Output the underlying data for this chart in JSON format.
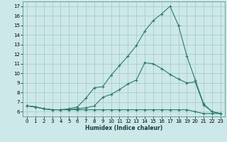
{
  "xlabel": "Humidex (Indice chaleur)",
  "background_color": "#cde8e8",
  "grid_color": "#aacccc",
  "line_color": "#2a7a6a",
  "xlim": [
    -0.5,
    23.5
  ],
  "ylim": [
    5.5,
    17.5
  ],
  "xticks": [
    0,
    1,
    2,
    3,
    4,
    5,
    6,
    7,
    8,
    9,
    10,
    11,
    12,
    13,
    14,
    15,
    16,
    17,
    18,
    19,
    20,
    21,
    22,
    23
  ],
  "yticks": [
    6,
    7,
    8,
    9,
    10,
    11,
    12,
    13,
    14,
    15,
    16,
    17
  ],
  "line1_x": [
    0,
    1,
    2,
    3,
    4,
    5,
    6,
    7,
    8,
    9,
    10,
    11,
    12,
    13,
    14,
    15,
    16,
    17,
    18,
    19,
    20,
    21,
    22,
    23
  ],
  "line1_y": [
    6.6,
    6.5,
    6.3,
    6.2,
    6.2,
    6.3,
    6.5,
    7.4,
    8.5,
    8.6,
    9.8,
    10.8,
    11.8,
    12.9,
    14.4,
    15.5,
    16.2,
    17.0,
    15.0,
    11.8,
    9.3,
    6.8,
    6.0,
    5.8
  ],
  "line2_x": [
    0,
    1,
    2,
    3,
    4,
    5,
    6,
    7,
    8,
    9,
    10,
    11,
    12,
    13,
    14,
    15,
    16,
    17,
    18,
    19,
    20,
    21,
    22,
    23
  ],
  "line2_y": [
    6.6,
    6.5,
    6.3,
    6.2,
    6.2,
    6.2,
    6.3,
    6.4,
    6.6,
    7.5,
    7.8,
    8.3,
    8.9,
    9.3,
    11.1,
    11.0,
    10.5,
    9.9,
    9.4,
    9.0,
    9.1,
    6.7,
    6.0,
    5.8
  ],
  "line3_x": [
    0,
    1,
    2,
    3,
    4,
    5,
    6,
    7,
    8,
    9,
    10,
    11,
    12,
    13,
    14,
    15,
    16,
    17,
    18,
    19,
    20,
    21,
    22,
    23
  ],
  "line3_y": [
    6.6,
    6.5,
    6.3,
    6.2,
    6.2,
    6.2,
    6.2,
    6.2,
    6.2,
    6.2,
    6.2,
    6.2,
    6.2,
    6.2,
    6.2,
    6.2,
    6.2,
    6.2,
    6.2,
    6.2,
    6.0,
    5.8,
    5.8,
    5.8
  ]
}
